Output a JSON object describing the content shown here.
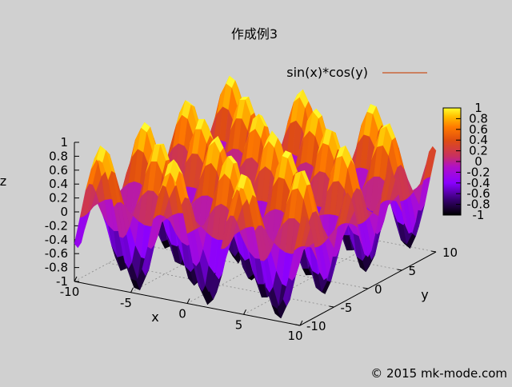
{
  "chart_data": {
    "type": "surface",
    "title": "作成例3",
    "xlabel": "x",
    "ylabel": "y",
    "zlabel": "z",
    "xlim": [
      -10,
      10
    ],
    "ylim": [
      -10,
      10
    ],
    "zlim": [
      -1,
      1
    ],
    "x_ticks": [
      "-10",
      "-5",
      "0",
      "5",
      "10"
    ],
    "y_ticks": [
      "-10",
      "-5",
      "0",
      "5",
      "10"
    ],
    "z_ticks": [
      "1",
      "0.8",
      "0.6",
      "0.4",
      "0.2",
      "0",
      "-0.2",
      "-0.4",
      "-0.6",
      "-0.8",
      "-1"
    ],
    "series": [
      {
        "name": "sin(x)*cos(y)",
        "function": "sin(x)*cos(y)",
        "color": "#c8501e"
      }
    ],
    "colorbar": {
      "range": [
        -1,
        1
      ],
      "ticks": [
        "1",
        "0.8",
        "0.6",
        "0.4",
        "0.2",
        "0",
        "-0.2",
        "-0.4",
        "-0.6",
        "-0.8",
        "-1"
      ],
      "palette": "gnuplot pm3d (black-blue-purple-red-orange-yellow)"
    },
    "grid": true,
    "legend_position": "top-right"
  },
  "footer": {
    "copyright": "© 2015 mk-mode.com"
  },
  "colors": {
    "background": "#d0d0d0",
    "legend_line": "#c8501e",
    "grid": "#888888"
  }
}
